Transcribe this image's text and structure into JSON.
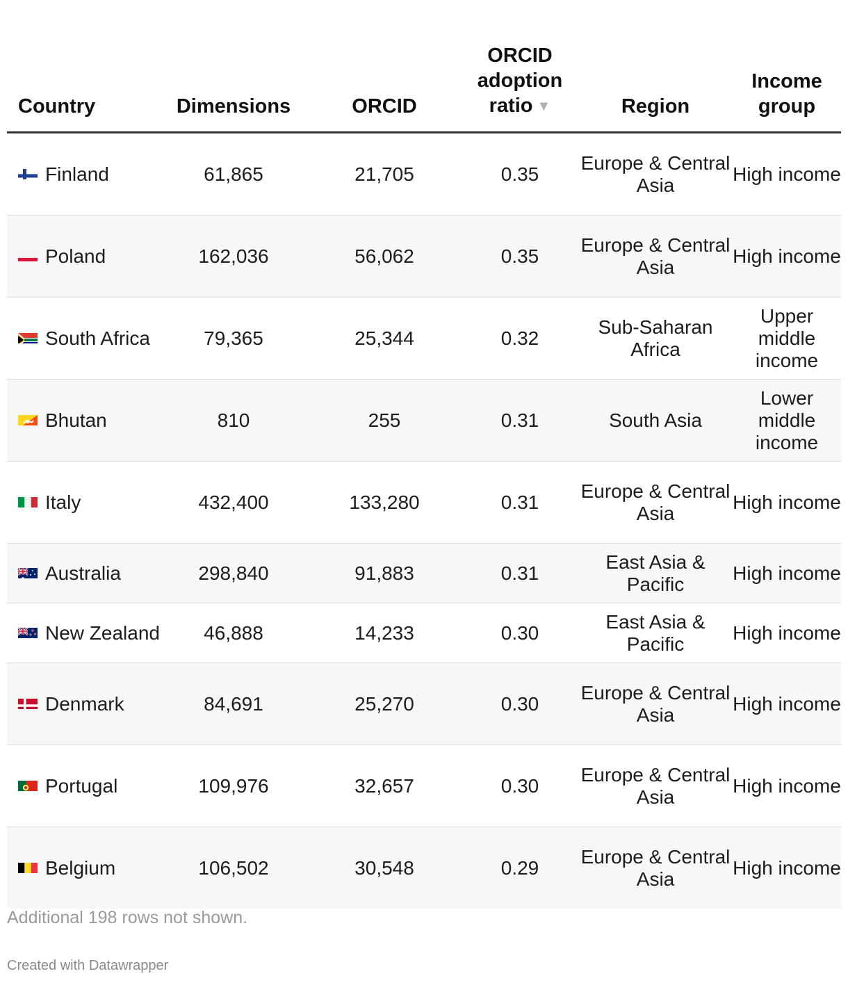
{
  "chart_data": {
    "type": "table",
    "columns": [
      "Country",
      "Dimensions",
      "ORCID",
      "ORCID adoption ratio",
      "Region",
      "Income group"
    ],
    "sort_column": "ORCID adoption ratio",
    "sort_order": "descending",
    "rows": [
      {
        "country": "Finland",
        "flag": "finland-flag",
        "dimensions": "61,865",
        "orcid": "21,705",
        "ratio": "0.35",
        "region": "Europe & Central Asia",
        "income": "High income"
      },
      {
        "country": "Poland",
        "flag": "poland-flag",
        "dimensions": "162,036",
        "orcid": "56,062",
        "ratio": "0.35",
        "region": "Europe & Central Asia",
        "income": "High income"
      },
      {
        "country": "South Africa",
        "flag": "south-africa-flag",
        "dimensions": "79,365",
        "orcid": "25,344",
        "ratio": "0.32",
        "region": "Sub-Saharan Africa",
        "income": "Upper middle income"
      },
      {
        "country": "Bhutan",
        "flag": "bhutan-flag",
        "dimensions": "810",
        "orcid": "255",
        "ratio": "0.31",
        "region": "South Asia",
        "income": "Lower middle income"
      },
      {
        "country": "Italy",
        "flag": "italy-flag",
        "dimensions": "432,400",
        "orcid": "133,280",
        "ratio": "0.31",
        "region": "Europe & Central Asia",
        "income": "High income"
      },
      {
        "country": "Australia",
        "flag": "australia-flag",
        "dimensions": "298,840",
        "orcid": "91,883",
        "ratio": "0.31",
        "region": "East Asia & Pacific",
        "income": "High income"
      },
      {
        "country": "New Zealand",
        "flag": "new-zealand-flag",
        "dimensions": "46,888",
        "orcid": "14,233",
        "ratio": "0.30",
        "region": "East Asia & Pacific",
        "income": "High income"
      },
      {
        "country": "Denmark",
        "flag": "denmark-flag",
        "dimensions": "84,691",
        "orcid": "25,270",
        "ratio": "0.30",
        "region": "Europe & Central Asia",
        "income": "High income"
      },
      {
        "country": "Portugal",
        "flag": "portugal-flag",
        "dimensions": "109,976",
        "orcid": "32,657",
        "ratio": "0.30",
        "region": "Europe & Central Asia",
        "income": "High income"
      },
      {
        "country": "Belgium",
        "flag": "belgium-flag",
        "dimensions": "106,502",
        "orcid": "30,548",
        "ratio": "0.29",
        "region": "Europe & Central Asia",
        "income": "High income"
      }
    ]
  },
  "footnote": "Additional 198 rows not shown.",
  "credit": "Created with Datawrapper",
  "colors": {
    "header_rule": "#333333",
    "stripe": "#f7f7f7",
    "footnote": "#9a9a9a"
  }
}
